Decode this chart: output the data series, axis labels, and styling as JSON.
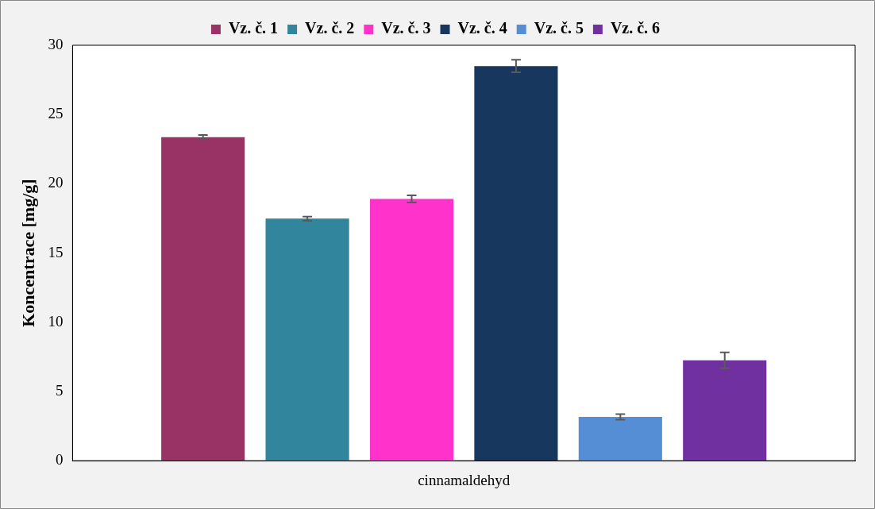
{
  "chart_data": {
    "type": "bar",
    "ylabel": "Koncentrace [mg/g]",
    "categories": [
      "cinnamaldehyd"
    ],
    "series": [
      {
        "name": "Vz. č. 1",
        "color": "#993366",
        "values": [
          23.37
        ],
        "errors": [
          0.15
        ]
      },
      {
        "name": "Vz. č. 2",
        "color": "#31859c",
        "values": [
          17.48
        ],
        "errors": [
          0.15
        ]
      },
      {
        "name": "Vz. č. 3",
        "color": "#ff33cc",
        "values": [
          18.9
        ],
        "errors": [
          0.26
        ]
      },
      {
        "name": "Vz. č. 4",
        "color": "#17375e",
        "values": [
          28.5
        ],
        "errors": [
          0.45
        ]
      },
      {
        "name": "Vz. č. 5",
        "color": "#558ed5",
        "values": [
          3.16
        ],
        "errors": [
          0.2
        ]
      },
      {
        "name": "Vz. č. 6",
        "color": "#7030a0",
        "values": [
          7.25
        ],
        "errors": [
          0.57
        ]
      }
    ],
    "ylim": [
      0,
      30
    ],
    "yticks": [
      0,
      5,
      10,
      15,
      20,
      25,
      30
    ],
    "grid": false,
    "legend": "top"
  }
}
